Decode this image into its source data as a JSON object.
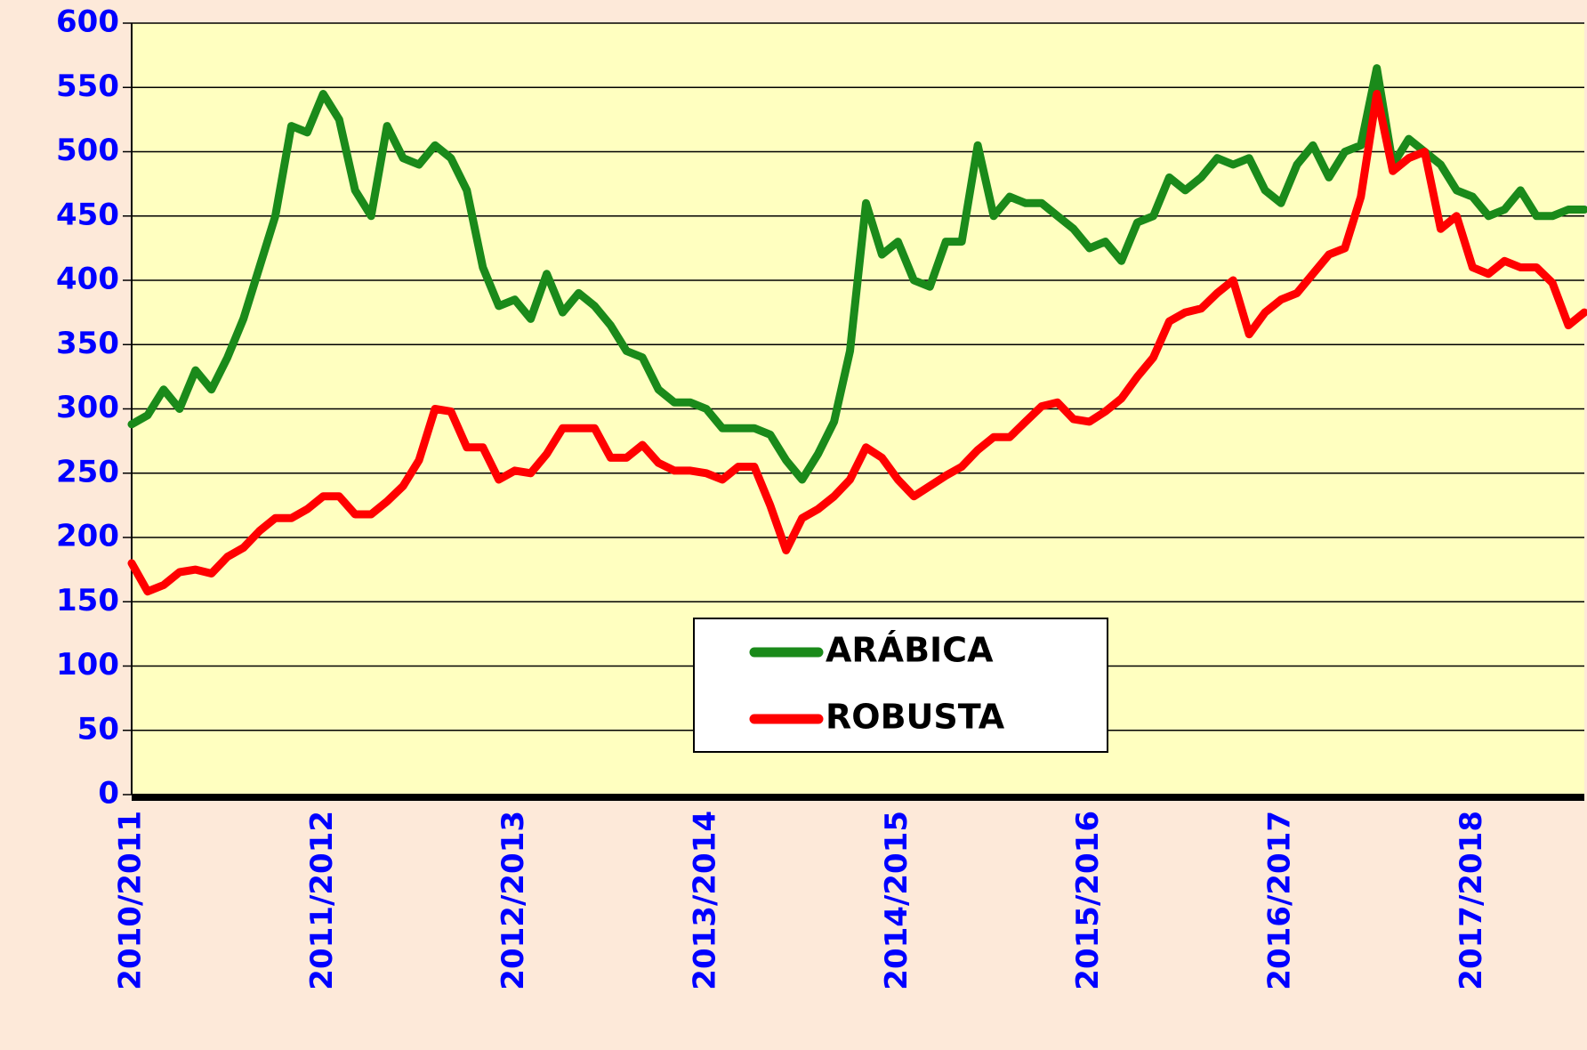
{
  "chart_data": {
    "type": "line",
    "categories": [
      "2010/2011",
      null,
      null,
      null,
      null,
      null,
      null,
      null,
      null,
      null,
      null,
      null,
      "2011/2012",
      null,
      null,
      null,
      null,
      null,
      null,
      null,
      null,
      null,
      null,
      null,
      "2012/2013",
      null,
      null,
      null,
      null,
      null,
      null,
      null,
      null,
      null,
      null,
      null,
      "2013/2014",
      null,
      null,
      null,
      null,
      null,
      null,
      null,
      null,
      null,
      null,
      null,
      "2014/2015",
      null,
      null,
      null,
      null,
      null,
      null,
      null,
      null,
      null,
      null,
      null,
      "2015/2016",
      null,
      null,
      null,
      null,
      null,
      null,
      null,
      null,
      null,
      null,
      null,
      "2016/2017",
      null,
      null,
      null,
      null,
      null,
      null,
      null,
      null,
      null,
      null,
      null,
      "2017/2018",
      null,
      null,
      null,
      null,
      null,
      null,
      null
    ],
    "series": [
      {
        "name": "ARÁBICA",
        "color": "#1a8a1a",
        "values": [
          288,
          295,
          315,
          300,
          330,
          315,
          340,
          370,
          410,
          450,
          520,
          515,
          545,
          525,
          470,
          450,
          520,
          495,
          490,
          505,
          495,
          470,
          410,
          380,
          385,
          370,
          405,
          375,
          390,
          380,
          365,
          345,
          340,
          315,
          305,
          305,
          300,
          285,
          285,
          285,
          280,
          260,
          245,
          265,
          290,
          345,
          460,
          420,
          430,
          400,
          395,
          430,
          430,
          505,
          450,
          465,
          460,
          460,
          450,
          440,
          425,
          430,
          415,
          445,
          450,
          480,
          470,
          480,
          495,
          490,
          495,
          470,
          460,
          490,
          505,
          480,
          500,
          505,
          565,
          490,
          510,
          500,
          490,
          470,
          465,
          450,
          455,
          470,
          450,
          450,
          455,
          455
        ]
      },
      {
        "name": "ROBUSTA",
        "color": "#ff0000",
        "values": [
          180,
          158,
          163,
          173,
          175,
          172,
          185,
          192,
          205,
          215,
          215,
          222,
          232,
          232,
          218,
          218,
          228,
          240,
          260,
          300,
          298,
          270,
          270,
          245,
          252,
          250,
          265,
          285,
          285,
          285,
          262,
          262,
          272,
          258,
          252,
          252,
          250,
          245,
          255,
          255,
          225,
          190,
          215,
          222,
          232,
          245,
          270,
          262,
          245,
          232,
          240,
          248,
          255,
          268,
          278,
          278,
          290,
          302,
          305,
          292,
          290,
          298,
          308,
          325,
          340,
          368,
          375,
          378,
          390,
          400,
          358,
          375,
          385,
          390,
          405,
          420,
          425,
          465,
          545,
          485,
          495,
          500,
          440,
          450,
          410,
          405,
          415,
          410,
          410,
          398,
          365,
          375
        ]
      }
    ],
    "ylim": [
      0,
      600
    ],
    "yticks": [
      0,
      50,
      100,
      150,
      200,
      250,
      300,
      350,
      400,
      450,
      500,
      550,
      600
    ],
    "grid": true
  }
}
